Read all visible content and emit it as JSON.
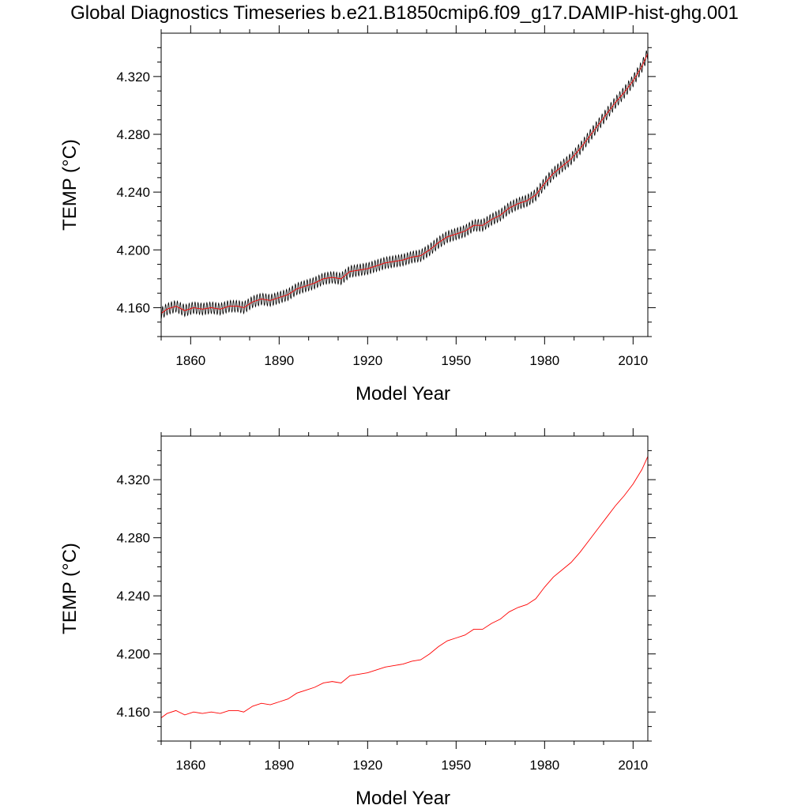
{
  "title": "Global Diagnostics Timeseries b.e21.B1850cmip6.f09_g17.DAMIP-hist-ghg.001",
  "colors": {
    "raw_series": "#000000",
    "smoothed_series": "#ff0000",
    "frame": "#000000"
  },
  "chart_data": [
    {
      "type": "line",
      "xlabel": "Model Year",
      "ylabel": "TEMP (°C)",
      "xlim": [
        1850,
        2015
      ],
      "ylim": [
        4.14,
        4.35
      ],
      "x_ticks": [
        1860,
        1890,
        1920,
        1950,
        1980,
        2010
      ],
      "x_tick_labels": [
        "1860",
        "1890",
        "1920",
        "1950",
        "1980",
        "2010"
      ],
      "y_ticks": [
        4.16,
        4.2,
        4.24,
        4.28,
        4.32
      ],
      "y_tick_labels": [
        "4.160",
        "4.200",
        "4.240",
        "4.280",
        "4.320"
      ],
      "grid": false,
      "series": [
        {
          "style": "monthly values oscillating ± about 0.004 around the smoothed curve, one cycle per year",
          "color": "#000000",
          "seasonal_amplitude": 0.004
        },
        {
          "style": "smoothed annual mean",
          "color": "#ff0000",
          "x": [
            1850,
            1852,
            1855,
            1858,
            1861,
            1864,
            1867,
            1870,
            1873,
            1876,
            1878,
            1881,
            1884,
            1887,
            1890,
            1893,
            1896,
            1899,
            1902,
            1905,
            1908,
            1911,
            1914,
            1917,
            1920,
            1923,
            1926,
            1929,
            1932,
            1935,
            1938,
            1941,
            1944,
            1947,
            1950,
            1953,
            1956,
            1959,
            1962,
            1965,
            1968,
            1971,
            1974,
            1977,
            1980,
            1983,
            1986,
            1989,
            1992,
            1995,
            1998,
            2001,
            2004,
            2007,
            2010,
            2013,
            2015
          ],
          "y": [
            4.156,
            4.159,
            4.161,
            4.158,
            4.16,
            4.159,
            4.16,
            4.159,
            4.161,
            4.161,
            4.16,
            4.164,
            4.166,
            4.165,
            4.167,
            4.169,
            4.173,
            4.175,
            4.177,
            4.18,
            4.181,
            4.18,
            4.185,
            4.186,
            4.187,
            4.189,
            4.191,
            4.192,
            4.193,
            4.195,
            4.196,
            4.2,
            4.205,
            4.209,
            4.211,
            4.213,
            4.217,
            4.217,
            4.221,
            4.224,
            4.229,
            4.232,
            4.234,
            4.238,
            4.246,
            4.253,
            4.258,
            4.263,
            4.27,
            4.278,
            4.286,
            4.294,
            4.302,
            4.309,
            4.317,
            4.327,
            4.336
          ]
        }
      ]
    },
    {
      "type": "line",
      "xlabel": "Model Year",
      "ylabel": "TEMP (°C)",
      "xlim": [
        1850,
        2015
      ],
      "ylim": [
        4.14,
        4.35
      ],
      "x_ticks": [
        1860,
        1890,
        1920,
        1950,
        1980,
        2010
      ],
      "x_tick_labels": [
        "1860",
        "1890",
        "1920",
        "1950",
        "1980",
        "2010"
      ],
      "y_ticks": [
        4.16,
        4.2,
        4.24,
        4.28,
        4.32
      ],
      "y_tick_labels": [
        "4.160",
        "4.200",
        "4.240",
        "4.280",
        "4.320"
      ],
      "grid": false,
      "series": [
        {
          "style": "smoothed annual mean",
          "color": "#ff0000",
          "x": [
            1850,
            1852,
            1855,
            1858,
            1861,
            1864,
            1867,
            1870,
            1873,
            1876,
            1878,
            1881,
            1884,
            1887,
            1890,
            1893,
            1896,
            1899,
            1902,
            1905,
            1908,
            1911,
            1914,
            1917,
            1920,
            1923,
            1926,
            1929,
            1932,
            1935,
            1938,
            1941,
            1944,
            1947,
            1950,
            1953,
            1956,
            1959,
            1962,
            1965,
            1968,
            1971,
            1974,
            1977,
            1980,
            1983,
            1986,
            1989,
            1992,
            1995,
            1998,
            2001,
            2004,
            2007,
            2010,
            2013,
            2015
          ],
          "y": [
            4.156,
            4.159,
            4.161,
            4.158,
            4.16,
            4.159,
            4.16,
            4.159,
            4.161,
            4.161,
            4.16,
            4.164,
            4.166,
            4.165,
            4.167,
            4.169,
            4.173,
            4.175,
            4.177,
            4.18,
            4.181,
            4.18,
            4.185,
            4.186,
            4.187,
            4.189,
            4.191,
            4.192,
            4.193,
            4.195,
            4.196,
            4.2,
            4.205,
            4.209,
            4.211,
            4.213,
            4.217,
            4.217,
            4.221,
            4.224,
            4.229,
            4.232,
            4.234,
            4.238,
            4.246,
            4.253,
            4.258,
            4.263,
            4.27,
            4.278,
            4.286,
            4.294,
            4.302,
            4.309,
            4.317,
            4.327,
            4.336
          ]
        }
      ]
    }
  ]
}
